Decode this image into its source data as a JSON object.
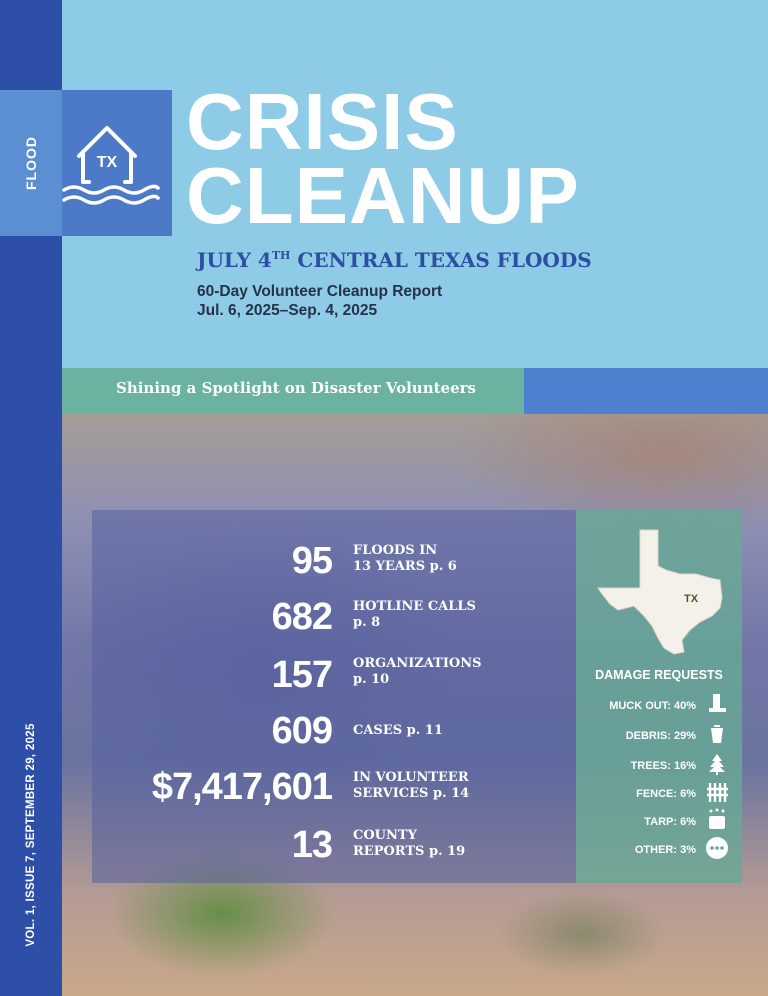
{
  "cover": {
    "flood_tag": "FLOOD",
    "logo_text": "TX",
    "title_line1": "CRISIS",
    "title_line2": "CLEANUP",
    "subtitle_pre": "JULY 4",
    "subtitle_sup": "TH",
    "subtitle_post": " CENTRAL TEXAS FLOODS",
    "report_title": "60-Day Volunteer Cleanup Report",
    "report_dates": "Jul. 6, 2025–Sep. 4, 2025",
    "banner": "Shining a Spotlight on Disaster Volunteers",
    "volume": "VOL. 1, ISSUE 7, SEPTEMBER 29, 2025"
  },
  "stats": [
    {
      "value": "95",
      "label_line1": "FLOODS IN",
      "label_line2": "13 YEARS  p. 6"
    },
    {
      "value": "682",
      "label_line1": "HOTLINE CALLS",
      "label_line2": "p. 8"
    },
    {
      "value": "157",
      "label_line1": "ORGANIZATIONS",
      "label_line2": "p. 10"
    },
    {
      "value": "609",
      "label_line1": "CASES  p. 11",
      "label_line2": ""
    },
    {
      "value": "$7,417,601",
      "label_line1": "IN VOLUNTEER",
      "label_line2": "SERVICES  p. 14"
    },
    {
      "value": "13",
      "label_line1": "COUNTY",
      "label_line2": "REPORTS  p. 19"
    }
  ],
  "damage": {
    "map_label": "TX",
    "title": "DAMAGE REQUESTS",
    "items": [
      {
        "label": "MUCK OUT: 40%",
        "icon": "boot-icon"
      },
      {
        "label": "DEBRIS: 29%",
        "icon": "trash-can-icon"
      },
      {
        "label": "TREES: 16%",
        "icon": "tree-icon"
      },
      {
        "label": "FENCE: 6%",
        "icon": "fence-icon"
      },
      {
        "label": "TARP: 6%",
        "icon": "tarp-icon"
      },
      {
        "label": "OTHER: 3%",
        "icon": "more-dots-icon"
      }
    ]
  },
  "colors": {
    "sky": "#8ecbe6",
    "navy_strip": "#2d4fa8",
    "title_blue": "#2c4fa3",
    "banner_green": "#6bb2a0",
    "banner_blue": "#4f80cf"
  }
}
